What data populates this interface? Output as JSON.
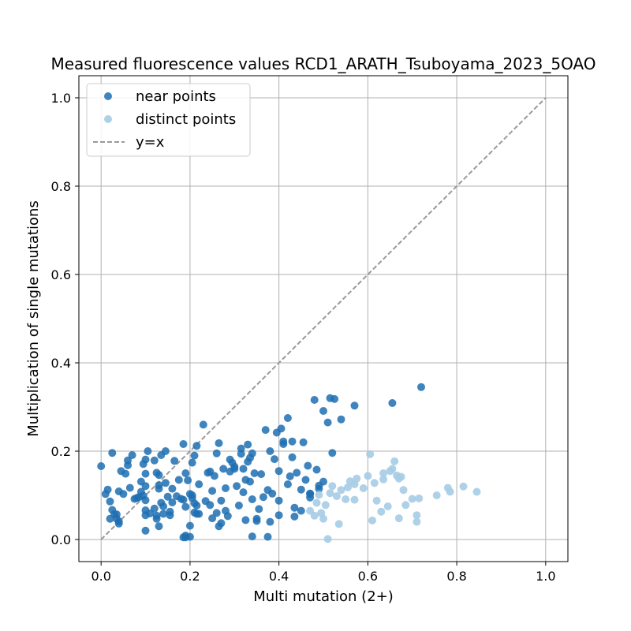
{
  "chart_data": {
    "type": "scatter",
    "title": "Measured fluorescence values RCD1_ARATH_Tsuboyama_2023_5OAO",
    "xlabel": "Multi mutation (2+)",
    "ylabel": "Multiplication of single mutations",
    "xlim": [
      -0.05,
      1.05
    ],
    "ylim": [
      -0.05,
      1.05
    ],
    "xticks": [
      "0.0",
      "0.2",
      "0.4",
      "0.6",
      "0.8",
      "1.0"
    ],
    "yticks": [
      "0.0",
      "0.2",
      "0.4",
      "0.6",
      "0.8",
      "1.0"
    ],
    "grid": true,
    "legend_position": "top-left",
    "legend": [
      {
        "label": "near points",
        "kind": "marker",
        "color": "#1f6fb2"
      },
      {
        "label": "distinct points",
        "kind": "marker",
        "color": "#a6cce6"
      },
      {
        "label": "y=x",
        "kind": "dashed-line",
        "color": "#999999"
      }
    ],
    "series": [
      {
        "name": "near points",
        "color": "#1f6fb2",
        "points": [
          [
            0.0,
            0.166
          ],
          [
            0.01,
            0.103
          ],
          [
            0.015,
            0.113
          ],
          [
            0.02,
            0.086
          ],
          [
            0.02,
            0.047
          ],
          [
            0.025,
            0.067
          ],
          [
            0.025,
            0.196
          ],
          [
            0.03,
            0.057
          ],
          [
            0.035,
            0.057
          ],
          [
            0.035,
            0.047
          ],
          [
            0.04,
            0.109
          ],
          [
            0.04,
            0.036
          ],
          [
            0.04,
            0.041
          ],
          [
            0.045,
            0.155
          ],
          [
            0.05,
            0.103
          ],
          [
            0.055,
            0.149
          ],
          [
            0.06,
            0.179
          ],
          [
            0.06,
            0.168
          ],
          [
            0.065,
            0.117
          ],
          [
            0.07,
            0.191
          ],
          [
            0.075,
            0.092
          ],
          [
            0.08,
            0.094
          ],
          [
            0.085,
            0.096
          ],
          [
            0.09,
            0.108
          ],
          [
            0.09,
            0.131
          ],
          [
            0.095,
            0.171
          ],
          [
            0.095,
            0.099
          ],
          [
            0.1,
            0.181
          ],
          [
            0.1,
            0.121
          ],
          [
            0.1,
            0.149
          ],
          [
            0.1,
            0.089
          ],
          [
            0.1,
            0.066
          ],
          [
            0.1,
            0.055
          ],
          [
            0.1,
            0.02
          ],
          [
            0.105,
            0.2
          ],
          [
            0.11,
            0.059
          ],
          [
            0.12,
            0.179
          ],
          [
            0.12,
            0.07
          ],
          [
            0.125,
            0.054
          ],
          [
            0.125,
            0.047
          ],
          [
            0.125,
            0.151
          ],
          [
            0.13,
            0.115
          ],
          [
            0.13,
            0.146
          ],
          [
            0.13,
            0.123
          ],
          [
            0.13,
            0.03
          ],
          [
            0.135,
            0.191
          ],
          [
            0.135,
            0.083
          ],
          [
            0.14,
            0.075
          ],
          [
            0.14,
            0.058
          ],
          [
            0.145,
            0.2
          ],
          [
            0.145,
            0.128
          ],
          [
            0.15,
            0.097
          ],
          [
            0.155,
            0.063
          ],
          [
            0.155,
            0.055
          ],
          [
            0.16,
            0.115
          ],
          [
            0.16,
            0.084
          ],
          [
            0.165,
            0.178
          ],
          [
            0.17,
            0.098
          ],
          [
            0.175,
            0.135
          ],
          [
            0.18,
            0.092
          ],
          [
            0.185,
            0.09
          ],
          [
            0.185,
            0.216
          ],
          [
            0.185,
            0.005
          ],
          [
            0.19,
            0.15
          ],
          [
            0.19,
            0.074
          ],
          [
            0.19,
            0.009
          ],
          [
            0.195,
            0.134
          ],
          [
            0.2,
            0.103
          ],
          [
            0.2,
            0.006
          ],
          [
            0.2,
            0.031
          ],
          [
            0.205,
            0.174
          ],
          [
            0.205,
            0.1
          ],
          [
            0.205,
            0.094
          ],
          [
            0.21,
            0.19
          ],
          [
            0.21,
            0.061
          ],
          [
            0.21,
            0.082
          ],
          [
            0.215,
            0.212
          ],
          [
            0.215,
            0.058
          ],
          [
            0.215,
            0.077
          ],
          [
            0.22,
            0.125
          ],
          [
            0.22,
            0.058
          ],
          [
            0.23,
            0.26
          ],
          [
            0.235,
            0.087
          ],
          [
            0.24,
            0.151
          ],
          [
            0.245,
            0.078
          ],
          [
            0.245,
            0.154
          ],
          [
            0.25,
            0.11
          ],
          [
            0.25,
            0.048
          ],
          [
            0.255,
            0.144
          ],
          [
            0.26,
            0.06
          ],
          [
            0.26,
            0.195
          ],
          [
            0.265,
            0.218
          ],
          [
            0.265,
            0.03
          ],
          [
            0.27,
            0.088
          ],
          [
            0.27,
            0.037
          ],
          [
            0.275,
            0.16
          ],
          [
            0.28,
            0.116
          ],
          [
            0.28,
            0.065
          ],
          [
            0.285,
            0.053
          ],
          [
            0.29,
            0.154
          ],
          [
            0.29,
            0.181
          ],
          [
            0.295,
            0.174
          ],
          [
            0.3,
            0.16
          ],
          [
            0.3,
            0.165
          ],
          [
            0.305,
            0.121
          ],
          [
            0.31,
            0.077
          ],
          [
            0.315,
            0.206
          ],
          [
            0.315,
            0.194
          ],
          [
            0.32,
            0.16
          ],
          [
            0.32,
            0.107
          ],
          [
            0.325,
            0.135
          ],
          [
            0.325,
            0.044
          ],
          [
            0.33,
            0.176
          ],
          [
            0.33,
            0.215
          ],
          [
            0.335,
            0.185
          ],
          [
            0.335,
            0.131
          ],
          [
            0.34,
            0.195
          ],
          [
            0.34,
            0.091
          ],
          [
            0.34,
            0.007
          ],
          [
            0.345,
            0.15
          ],
          [
            0.35,
            0.047
          ],
          [
            0.35,
            0.042
          ],
          [
            0.355,
            0.069
          ],
          [
            0.36,
            0.148
          ],
          [
            0.365,
            0.096
          ],
          [
            0.37,
            0.248
          ],
          [
            0.375,
            0.112
          ],
          [
            0.38,
            0.2
          ],
          [
            0.38,
            0.04
          ],
          [
            0.385,
            0.104
          ],
          [
            0.39,
            0.182
          ],
          [
            0.395,
            0.242
          ],
          [
            0.4,
            0.155
          ],
          [
            0.4,
            0.088
          ],
          [
            0.4,
            0.055
          ],
          [
            0.405,
            0.251
          ],
          [
            0.41,
            0.222
          ],
          [
            0.41,
            0.216
          ],
          [
            0.42,
            0.275
          ],
          [
            0.42,
            0.125
          ],
          [
            0.425,
            0.143
          ],
          [
            0.43,
            0.222
          ],
          [
            0.43,
            0.186
          ],
          [
            0.435,
            0.072
          ],
          [
            0.435,
            0.052
          ],
          [
            0.44,
            0.151
          ],
          [
            0.45,
            0.113
          ],
          [
            0.45,
            0.065
          ],
          [
            0.455,
            0.22
          ],
          [
            0.46,
            0.135
          ],
          [
            0.465,
            0.167
          ],
          [
            0.47,
            0.104
          ],
          [
            0.47,
            0.095
          ],
          [
            0.48,
            0.316
          ],
          [
            0.485,
            0.158
          ],
          [
            0.49,
            0.122
          ],
          [
            0.49,
            0.115
          ],
          [
            0.5,
            0.131
          ],
          [
            0.5,
            0.291
          ],
          [
            0.51,
            0.265
          ],
          [
            0.515,
            0.32
          ],
          [
            0.52,
            0.196
          ],
          [
            0.525,
            0.318
          ],
          [
            0.54,
            0.272
          ],
          [
            0.57,
            0.303
          ],
          [
            0.655,
            0.309
          ],
          [
            0.72,
            0.345
          ],
          [
            0.375,
            0.006
          ],
          [
            0.19,
            0.005
          ],
          [
            0.47,
            0.103
          ]
        ]
      },
      {
        "name": "distinct points",
        "color": "#a6cce6",
        "points": [
          [
            0.47,
            0.065
          ],
          [
            0.48,
            0.054
          ],
          [
            0.485,
            0.083
          ],
          [
            0.49,
            0.101
          ],
          [
            0.495,
            0.06
          ],
          [
            0.5,
            0.047
          ],
          [
            0.505,
            0.078
          ],
          [
            0.51,
            0.001
          ],
          [
            0.515,
            0.105
          ],
          [
            0.52,
            0.121
          ],
          [
            0.53,
            0.098
          ],
          [
            0.535,
            0.035
          ],
          [
            0.54,
            0.112
          ],
          [
            0.55,
            0.091
          ],
          [
            0.555,
            0.118
          ],
          [
            0.56,
            0.132
          ],
          [
            0.57,
            0.09
          ],
          [
            0.57,
            0.125
          ],
          [
            0.575,
            0.138
          ],
          [
            0.59,
            0.116
          ],
          [
            0.6,
            0.144
          ],
          [
            0.605,
            0.193
          ],
          [
            0.61,
            0.043
          ],
          [
            0.615,
            0.128
          ],
          [
            0.62,
            0.088
          ],
          [
            0.63,
            0.063
          ],
          [
            0.635,
            0.15
          ],
          [
            0.635,
            0.136
          ],
          [
            0.645,
            0.075
          ],
          [
            0.65,
            0.155
          ],
          [
            0.655,
            0.16
          ],
          [
            0.66,
            0.177
          ],
          [
            0.665,
            0.145
          ],
          [
            0.67,
            0.048
          ],
          [
            0.67,
            0.138
          ],
          [
            0.675,
            0.142
          ],
          [
            0.68,
            0.112
          ],
          [
            0.685,
            0.078
          ],
          [
            0.7,
            0.092
          ],
          [
            0.71,
            0.055
          ],
          [
            0.71,
            0.04
          ],
          [
            0.715,
            0.093
          ],
          [
            0.755,
            0.1
          ],
          [
            0.78,
            0.117
          ],
          [
            0.785,
            0.108
          ],
          [
            0.815,
            0.12
          ],
          [
            0.845,
            0.108
          ]
        ]
      }
    ],
    "reference_line": {
      "name": "y=x",
      "from": [
        0,
        0
      ],
      "to": [
        1,
        1
      ]
    }
  }
}
